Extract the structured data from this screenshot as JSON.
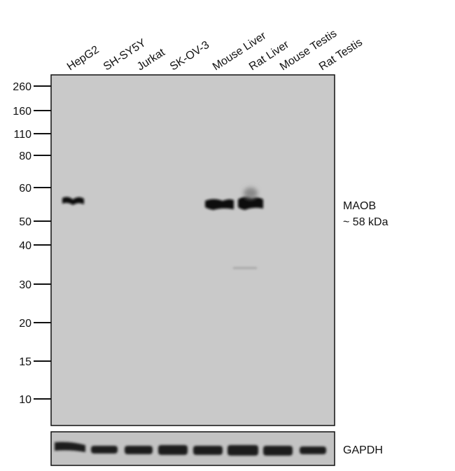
{
  "lanes": [
    "HepG2",
    "SH-SY5Y",
    "Jurkat",
    "SK-OV-3",
    "Mouse Liver",
    "Rat Liver",
    "Mouse Testis",
    "Rat Testis"
  ],
  "markers": [
    260,
    160,
    110,
    80,
    60,
    50,
    40,
    30,
    20,
    15,
    10
  ],
  "target": {
    "name": "MAOB",
    "size": "~ 58 kDa"
  },
  "loading_control": "GAPDH"
}
